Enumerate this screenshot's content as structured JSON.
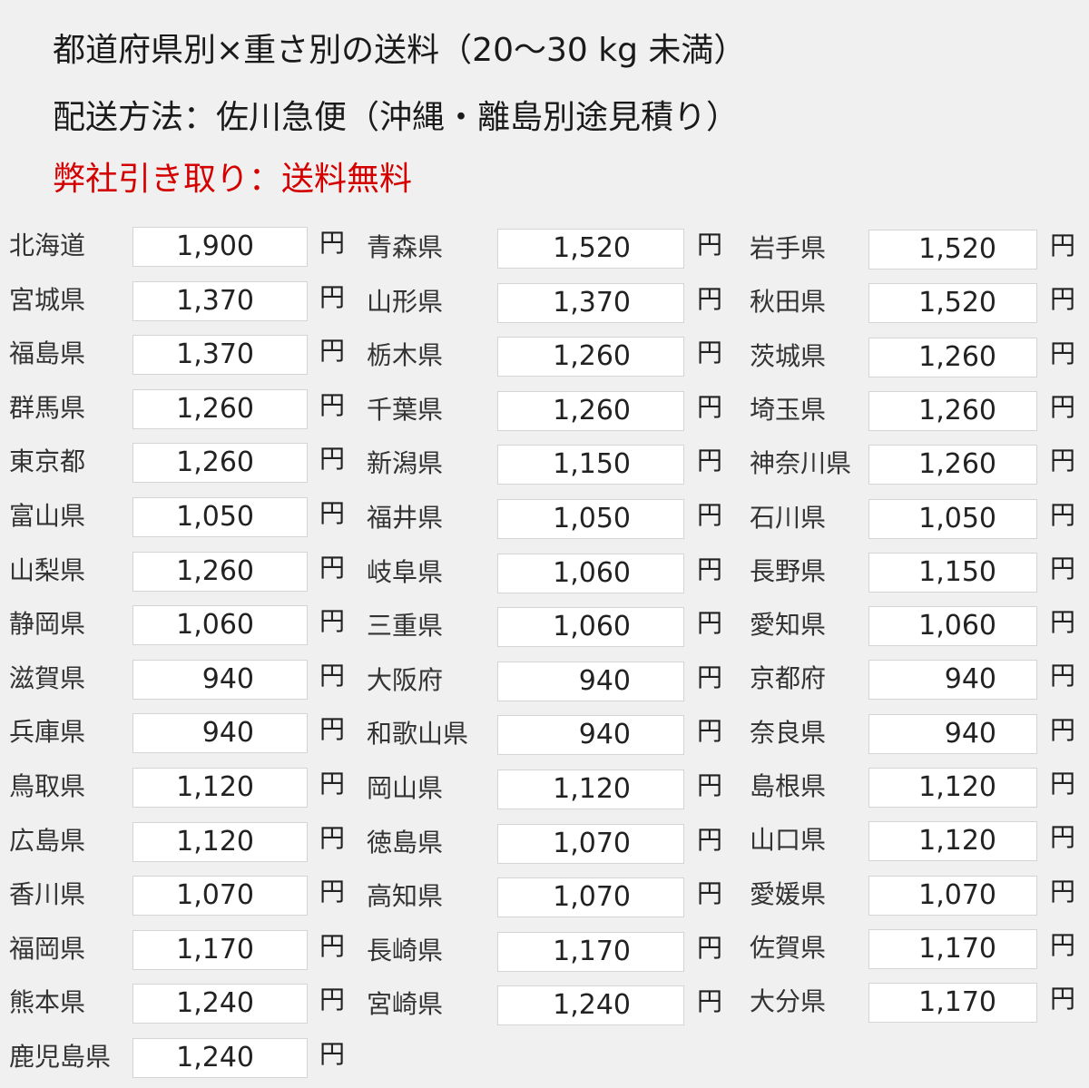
{
  "header": {
    "title": "都道府県別×重さ別の送料（20〜30 kg 未満）",
    "method": "配送方法：佐川急便（沖縄・離島別途見積り）",
    "pickup": "弊社引き取り：送料無料"
  },
  "colors": {
    "pickup_text": "#d40000",
    "background": "#f0f0f0"
  },
  "currency_unit": "円",
  "columns": [
    [
      {
        "pref": "北海道",
        "price": "1,900"
      },
      {
        "pref": "宮城県",
        "price": "1,370"
      },
      {
        "pref": "福島県",
        "price": "1,370"
      },
      {
        "pref": "群馬県",
        "price": "1,260"
      },
      {
        "pref": "東京都",
        "price": "1,260"
      },
      {
        "pref": "富山県",
        "price": "1,050"
      },
      {
        "pref": "山梨県",
        "price": "1,260"
      },
      {
        "pref": "静岡県",
        "price": "1,060"
      },
      {
        "pref": "滋賀県",
        "price": "940"
      },
      {
        "pref": "兵庫県",
        "price": "940"
      },
      {
        "pref": "鳥取県",
        "price": "1,120"
      },
      {
        "pref": "広島県",
        "price": "1,120"
      },
      {
        "pref": "香川県",
        "price": "1,070"
      },
      {
        "pref": "福岡県",
        "price": "1,170"
      },
      {
        "pref": "熊本県",
        "price": "1,240"
      },
      {
        "pref": "鹿児島県",
        "price": "1,240"
      }
    ],
    [
      {
        "pref": "青森県",
        "price": "1,520"
      },
      {
        "pref": "山形県",
        "price": "1,370"
      },
      {
        "pref": "栃木県",
        "price": "1,260"
      },
      {
        "pref": "千葉県",
        "price": "1,260"
      },
      {
        "pref": "新潟県",
        "price": "1,150"
      },
      {
        "pref": "福井県",
        "price": "1,050"
      },
      {
        "pref": "岐阜県",
        "price": "1,060"
      },
      {
        "pref": "三重県",
        "price": "1,060"
      },
      {
        "pref": "大阪府",
        "price": "940"
      },
      {
        "pref": "和歌山県",
        "price": "940"
      },
      {
        "pref": "岡山県",
        "price": "1,120"
      },
      {
        "pref": "徳島県",
        "price": "1,070"
      },
      {
        "pref": "高知県",
        "price": "1,070"
      },
      {
        "pref": "長崎県",
        "price": "1,170"
      },
      {
        "pref": "宮崎県",
        "price": "1,240"
      }
    ],
    [
      {
        "pref": "岩手県",
        "price": "1,520"
      },
      {
        "pref": "秋田県",
        "price": "1,520"
      },
      {
        "pref": "茨城県",
        "price": "1,260"
      },
      {
        "pref": "埼玉県",
        "price": "1,260"
      },
      {
        "pref": "神奈川県",
        "price": "1,260"
      },
      {
        "pref": "石川県",
        "price": "1,050"
      },
      {
        "pref": "長野県",
        "price": "1,150"
      },
      {
        "pref": "愛知県",
        "price": "1,060"
      },
      {
        "pref": "京都府",
        "price": "940"
      },
      {
        "pref": "奈良県",
        "price": "940"
      },
      {
        "pref": "島根県",
        "price": "1,120"
      },
      {
        "pref": "山口県",
        "price": "1,120"
      },
      {
        "pref": "愛媛県",
        "price": "1,070"
      },
      {
        "pref": "佐賀県",
        "price": "1,170"
      },
      {
        "pref": "大分県",
        "price": "1,170"
      }
    ]
  ]
}
